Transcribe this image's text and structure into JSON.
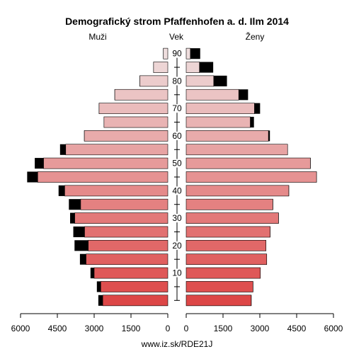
{
  "chart_data": {
    "type": "bar",
    "title": "Demografický strom Pfaffenhofen a. d. Ilm 2014",
    "left_label": "Muži",
    "center_label": "Vek",
    "right_label": "Ženy",
    "footer": "www.iz.sk/RDE21J",
    "x_ticks_left": [
      "6000",
      "4500",
      "3000",
      "1500",
      "0"
    ],
    "x_ticks_right": [
      "0",
      "1500",
      "3000",
      "4500",
      "6000"
    ],
    "xlim": [
      0,
      6000
    ],
    "age_ticks": [
      "10",
      "20",
      "30",
      "40",
      "50",
      "60",
      "70",
      "80",
      "90"
    ],
    "age_groups": [
      "0-4",
      "5-9",
      "10-14",
      "15-19",
      "20-24",
      "25-29",
      "30-34",
      "35-39",
      "40-44",
      "45-49",
      "50-54",
      "55-59",
      "60-64",
      "65-69",
      "70-74",
      "75-79",
      "80-84",
      "85-89",
      "90+"
    ],
    "series": [
      {
        "name": "Muži",
        "values": [
          2650,
          2730,
          3000,
          3330,
          3240,
          3390,
          3790,
          3550,
          4200,
          5300,
          5060,
          4160,
          3400,
          2600,
          2800,
          2160,
          1140,
          580,
          180
        ],
        "extra": [
          180,
          160,
          150,
          250,
          560,
          460,
          190,
          480,
          250,
          430,
          360,
          230,
          10,
          10,
          10,
          10,
          10,
          10,
          10
        ]
      },
      {
        "name": "Ženy",
        "values": [
          2650,
          2720,
          3020,
          3280,
          3250,
          3420,
          3760,
          3530,
          4180,
          5310,
          5060,
          4130,
          3350,
          2610,
          2780,
          2140,
          1120,
          540,
          170
        ],
        "extra": [
          10,
          10,
          10,
          10,
          10,
          10,
          10,
          10,
          10,
          10,
          10,
          10,
          60,
          150,
          230,
          380,
          540,
          560,
          400
        ]
      }
    ],
    "colors": {
      "extra": "#000000",
      "outline": "#000000",
      "bottom": "#dd4747",
      "top": "#eedddd"
    },
    "legend": "none",
    "grid": false
  }
}
